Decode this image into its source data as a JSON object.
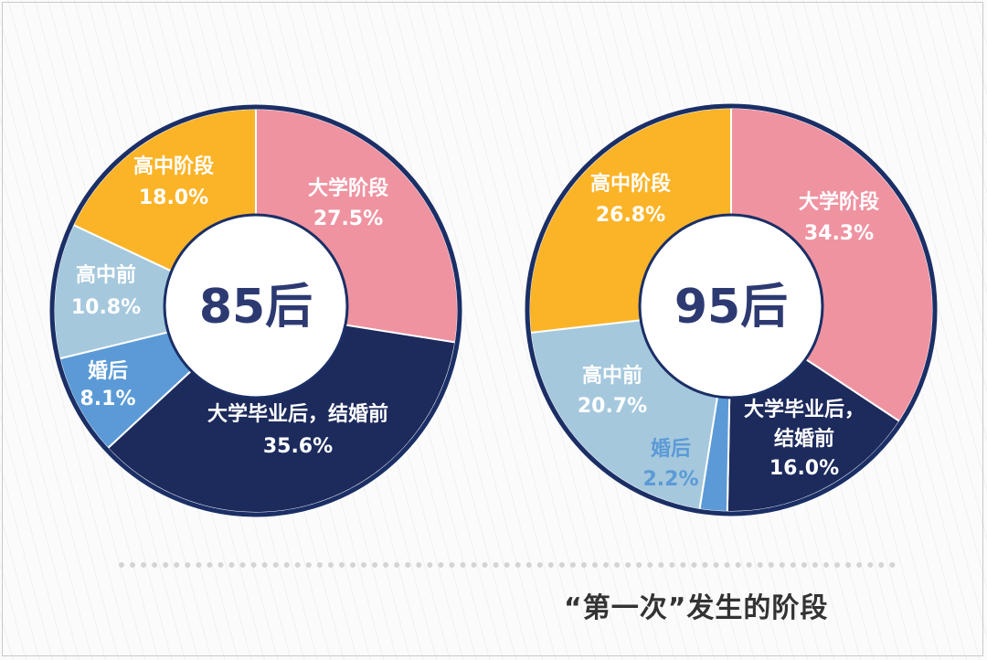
{
  "caption": "“第一次”发生的阶段",
  "colors": {
    "navy": "#1c2a5c",
    "pink": "#ef93a1",
    "orange": "#fbb428",
    "lightblue": "#a5c8dd",
    "blue": "#5b9ad6",
    "ring_border": "#1b2f66"
  },
  "chart_data": [
    {
      "type": "pie",
      "center_label": "85后",
      "slices": [
        {
          "name": "大学阶段",
          "value": 27.5,
          "label": "27.5%",
          "color": "pink",
          "text_color": "#ffffff"
        },
        {
          "name": "大学毕业后，结婚前",
          "value": 35.6,
          "label": "35.6%",
          "color": "navy",
          "text_color": "#ffffff"
        },
        {
          "name": "婚后",
          "value": 8.1,
          "label": "8.1%",
          "color": "blue",
          "text_color": "#ffffff"
        },
        {
          "name": "高中前",
          "value": 10.8,
          "label": "10.8%",
          "color": "lightblue",
          "text_color": "#ffffff"
        },
        {
          "name": "高中阶段",
          "value": 18.0,
          "label": "18.0%",
          "color": "orange",
          "text_color": "#ffffff"
        }
      ]
    },
    {
      "type": "pie",
      "center_label": "95后",
      "slices": [
        {
          "name": "大学阶段",
          "value": 34.3,
          "label": "34.3%",
          "color": "pink",
          "text_color": "#ffffff"
        },
        {
          "name": "大学毕业后，结婚前",
          "value": 16.0,
          "label": "16.0%",
          "color": "navy",
          "text_color": "#ffffff"
        },
        {
          "name": "婚后",
          "value": 2.2,
          "label": "2.2%",
          "color": "blue",
          "text_color": "#5b9ad6"
        },
        {
          "name": "高中前",
          "value": 20.7,
          "label": "20.7%",
          "color": "lightblue",
          "text_color": "#ffffff"
        },
        {
          "name": "高中阶段",
          "value": 26.8,
          "label": "26.8%",
          "color": "orange",
          "text_color": "#ffffff"
        }
      ]
    }
  ]
}
